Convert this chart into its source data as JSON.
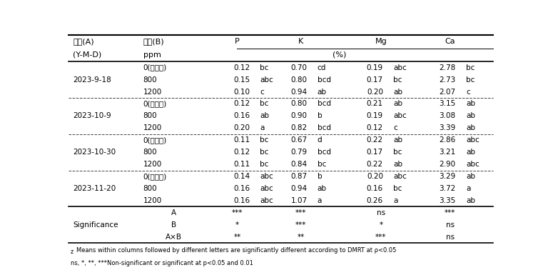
{
  "col_headers": [
    "P",
    "K",
    "Mg",
    "Ca"
  ],
  "rows": [
    [
      "",
      "0(무치리)",
      "0.12",
      "bc",
      "0.70",
      "cd",
      "0.19",
      "abc",
      "2.78",
      "bc"
    ],
    [
      "2023-9-18",
      "800",
      "0.15",
      "abc",
      "0.80",
      "bcd",
      "0.17",
      "bc",
      "2.73",
      "bc"
    ],
    [
      "",
      "1200",
      "0.10",
      "c",
      "0.94",
      "ab",
      "0.20",
      "ab",
      "2.07",
      "c"
    ],
    [
      "",
      "0(무치리)",
      "0.12",
      "bc",
      "0.80",
      "bcd",
      "0.21",
      "ab",
      "3.15",
      "ab"
    ],
    [
      "2023-10-9",
      "800",
      "0.16",
      "ab",
      "0.90",
      "b",
      "0.19",
      "abc",
      "3.08",
      "ab"
    ],
    [
      "",
      "1200",
      "0.20",
      "a",
      "0.82",
      "bcd",
      "0.12",
      "c",
      "3.39",
      "ab"
    ],
    [
      "",
      "0(무치리)",
      "0.11",
      "bc",
      "0.67",
      "d",
      "0.22",
      "ab",
      "2.86",
      "abc"
    ],
    [
      "2023-10-30",
      "800",
      "0.12",
      "bc",
      "0.79",
      "bcd",
      "0.17",
      "bc",
      "3.21",
      "ab"
    ],
    [
      "",
      "1200",
      "0.11",
      "bc",
      "0.84",
      "bc",
      "0.22",
      "ab",
      "2.90",
      "abc"
    ],
    [
      "",
      "0(무치리)",
      "0.14",
      "abc",
      "0.87",
      "b",
      "0.20",
      "abc",
      "3.29",
      "ab"
    ],
    [
      "2023-11-20",
      "800",
      "0.16",
      "abc",
      "0.94",
      "ab",
      "0.16",
      "bc",
      "3.72",
      "a"
    ],
    [
      "",
      "1200",
      "0.16",
      "abc",
      "1.07",
      "a",
      "0.26",
      "a",
      "3.35",
      "ab"
    ]
  ],
  "significance_rows": [
    [
      "",
      "A",
      "***",
      "***",
      "ns",
      "***"
    ],
    [
      "Significance",
      "B",
      "*",
      "***",
      "*",
      "ns"
    ],
    [
      "",
      "A×B",
      "**",
      "**",
      "***",
      "ns"
    ]
  ],
  "header1_col1": "날짜(A)",
  "header1_col2": "농도(B)",
  "header2_col1": "(Y-M-D)",
  "header2_col2": "ppm",
  "header2_unit": "(%)",
  "date_labels": [
    "2023-9-18",
    "2023-10-9",
    "2023-10-30",
    "2023-11-20"
  ],
  "footnote1_super": "z",
  "footnote1_text": "Means within columns followed by different letters are significantly different according to DMRT at ρ<0.05",
  "footnote2": "ns, *, **, ***Non-significant or significant at p<0.05 and 0.01",
  "bg_color": "#ffffff",
  "text_color": "#000000",
  "font_size": 7.5,
  "header_font_size": 8.0
}
